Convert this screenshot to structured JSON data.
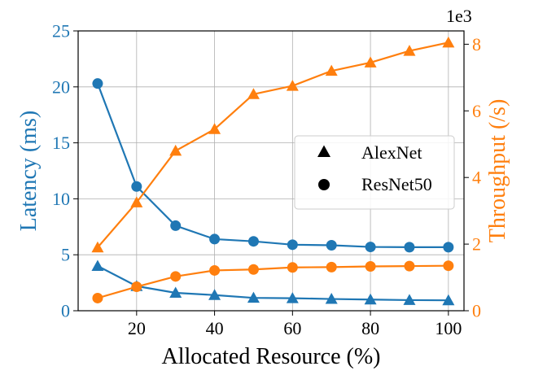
{
  "chart_data": {
    "type": "line",
    "x": [
      10,
      20,
      30,
      40,
      50,
      60,
      70,
      80,
      90,
      100
    ],
    "xlabel": "Allocated Resource (%)",
    "xticks": [
      "20",
      "40",
      "60",
      "80",
      "100"
    ],
    "xlim": [
      5,
      104
    ],
    "y_left": {
      "label": "Latency (ms)",
      "ticks": [
        "0",
        "5",
        "10",
        "15",
        "20",
        "25"
      ],
      "lim": [
        0,
        25
      ],
      "color": "#1f77b4"
    },
    "y_right": {
      "label": "Throughput (/s)",
      "ticks": [
        "0",
        "2",
        "4",
        "6",
        "8"
      ],
      "lim": [
        0,
        8.4
      ],
      "multiplier": "1e3",
      "color": "#ff7f0e"
    },
    "series": [
      {
        "axis": "left",
        "model": "ResNet50",
        "marker": "circle",
        "color": "#1f77b4",
        "values": [
          20.3,
          11.1,
          7.6,
          6.4,
          6.2,
          5.9,
          5.85,
          5.7,
          5.68,
          5.68
        ]
      },
      {
        "axis": "left",
        "model": "AlexNet",
        "marker": "triangle",
        "color": "#1f77b4",
        "values": [
          4.0,
          2.2,
          1.6,
          1.4,
          1.15,
          1.12,
          1.05,
          1.0,
          0.95,
          0.93
        ]
      },
      {
        "axis": "right",
        "model": "AlexNet",
        "marker": "triangle",
        "color": "#ff7f0e",
        "values": [
          1.9,
          3.25,
          4.8,
          5.45,
          6.5,
          6.75,
          7.2,
          7.45,
          7.8,
          8.05
        ]
      },
      {
        "axis": "right",
        "model": "ResNet50",
        "marker": "circle",
        "color": "#ff7f0e",
        "values": [
          0.38,
          0.72,
          1.03,
          1.21,
          1.24,
          1.3,
          1.31,
          1.33,
          1.34,
          1.35
        ]
      }
    ],
    "legend": {
      "placement": "center-right",
      "entries": [
        {
          "label": "AlexNet",
          "marker": "triangle"
        },
        {
          "label": "ResNet50",
          "marker": "circle"
        }
      ]
    },
    "grid": true
  }
}
